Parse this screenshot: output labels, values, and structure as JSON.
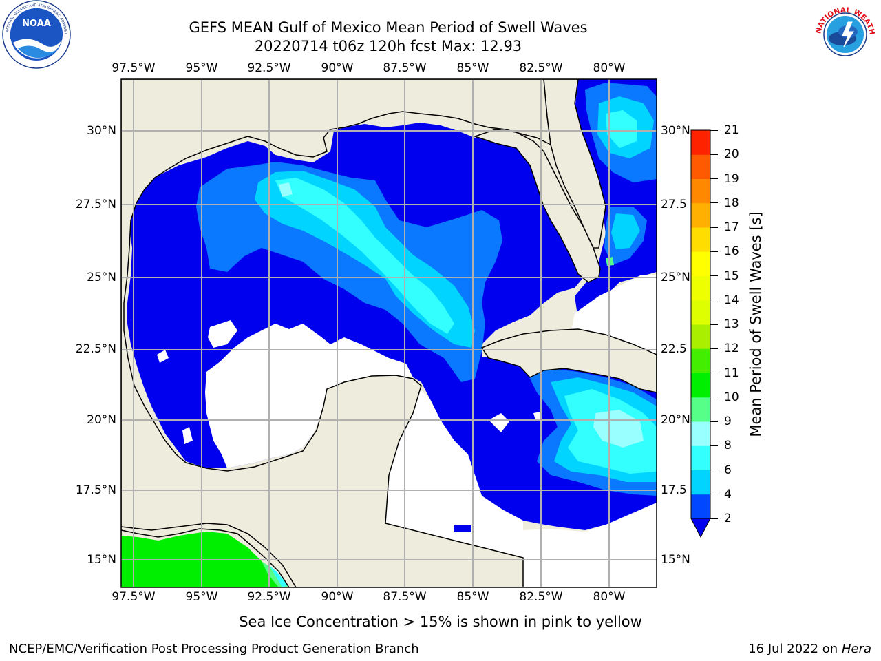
{
  "header": {
    "title_line1": "GEFS MEAN Gulf of Mexico Mean Period of Swell Waves",
    "title_line2": "20220714 t06z 120h fcst   Max: 12.93"
  },
  "logos": {
    "left": {
      "name": "noaa-logo",
      "text": "NOAA",
      "ring_text": "NATIONAL OCEANIC AND ATMOSPHERIC ADMINISTRATION · U.S. DEPARTMENT OF COMMERCE"
    },
    "right": {
      "name": "nws-logo",
      "ring_text": "NATIONAL WEATHER SERVICE"
    }
  },
  "map": {
    "lon_labels": [
      "97.5°W",
      "95°W",
      "92.5°W",
      "90°W",
      "87.5°W",
      "85°W",
      "82.5°W",
      "80°W"
    ],
    "lat_labels_left": [
      "30°N",
      "27.5°N",
      "25°N",
      "22.5°N",
      "20°N",
      "17.5°N",
      "15°N"
    ],
    "lat_labels_right": [
      "30°N",
      "27.5",
      "25°N",
      "22.5",
      "20°N",
      "17.5",
      "15°N"
    ],
    "colors": {
      "land": "#eeecdc",
      "ocean_missing": "#ffffff",
      "grid": "#b0b0b0",
      "coast": "#000000"
    }
  },
  "colorbar": {
    "label": "Mean Period of Swell Waves [s]",
    "ticks": [
      "2",
      "4",
      "6",
      "8",
      "9",
      "10",
      "11",
      "12",
      "13",
      "14",
      "15",
      "16",
      "17",
      "18",
      "19",
      "20",
      "21"
    ],
    "colors": [
      "#0047ff",
      "#00d4ff",
      "#33ffff",
      "#99ffff",
      "#55ff88",
      "#00ee00",
      "#44ee00",
      "#aaee00",
      "#ddff00",
      "#eeff00",
      "#ffff00",
      "#ffdd00",
      "#ffb000",
      "#ff8800",
      "#ff5a00",
      "#ff2200"
    ],
    "extend_color": "#0000ee"
  },
  "note": "Sea Ice Concentration > 15% is shown in pink to yellow",
  "footer": {
    "left": "NCEP/EMC/Verification Post Processing Product Generation Branch",
    "right_date": "16 Jul 2022 on ",
    "right_host": "Hera"
  }
}
